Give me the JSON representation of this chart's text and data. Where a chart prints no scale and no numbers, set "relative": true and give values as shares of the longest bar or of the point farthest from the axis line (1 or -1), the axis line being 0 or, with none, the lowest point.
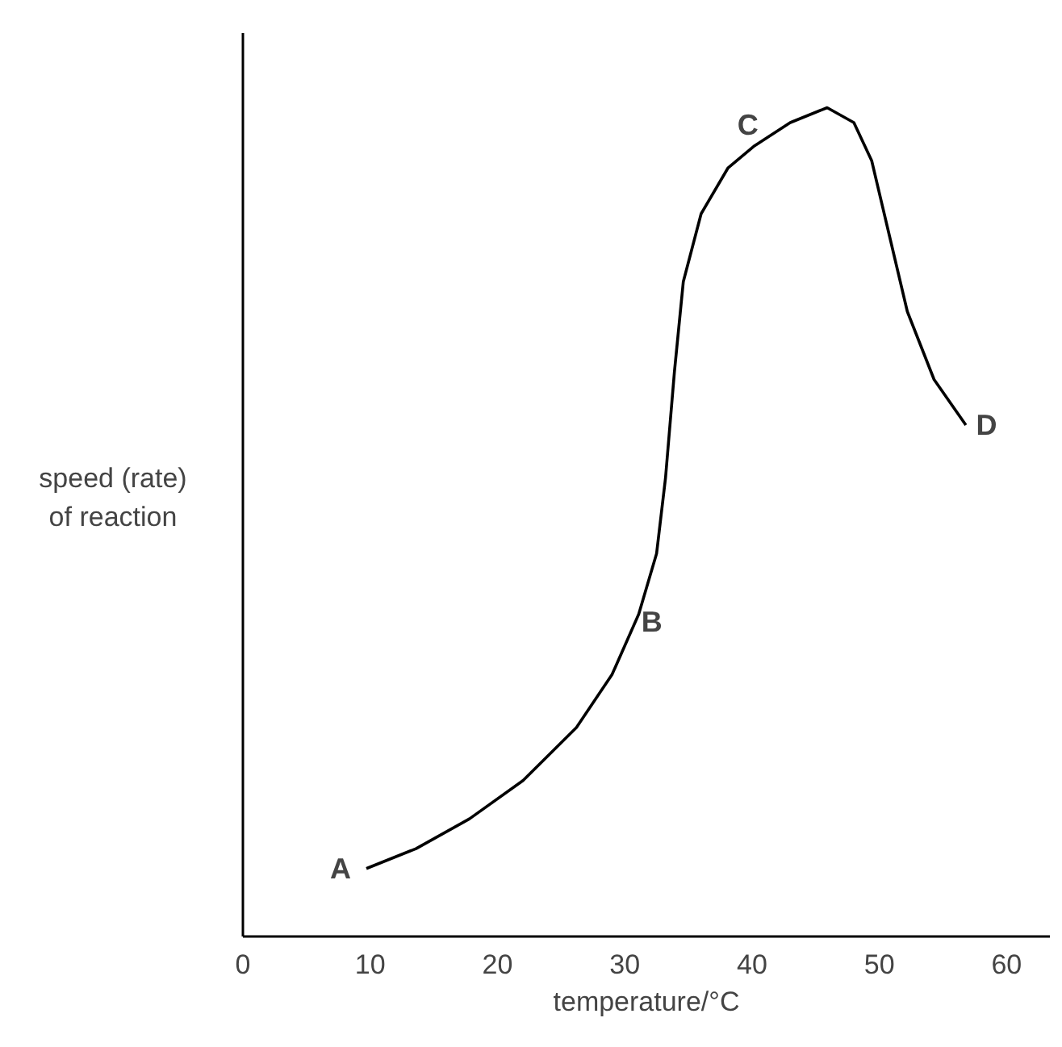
{
  "chart_data": {
    "type": "line",
    "relative": true,
    "xlabel": "temperature/°C",
    "ylabel": "speed (rate)\nof reaction",
    "xlim": [
      0,
      63.4
    ],
    "xticks": [
      0,
      10,
      20,
      30,
      40,
      50,
      60
    ],
    "grid": false,
    "line_style": "solid",
    "x": [
      9.7,
      13.6,
      17.8,
      22.0,
      26.2,
      29.0,
      31.1,
      32.5,
      33.2,
      33.9,
      34.6,
      36.0,
      38.1,
      40.2,
      43.0,
      45.9,
      48.0,
      49.4,
      50.8,
      52.2,
      54.3,
      56.8
    ],
    "series": [
      {
        "color": "#000000",
        "values": [
          0.082,
          0.106,
          0.142,
          0.188,
          0.252,
          0.316,
          0.389,
          0.462,
          0.553,
          0.681,
          0.79,
          0.872,
          0.927,
          0.954,
          0.982,
          1,
          0.982,
          0.936,
          0.845,
          0.754,
          0.672,
          0.617
        ]
      }
    ],
    "annotations": [
      {
        "text": "A",
        "x": 9.7,
        "y": 0.082
      },
      {
        "text": "B",
        "x": 30.5,
        "y": 0.36
      },
      {
        "text": "C",
        "x": 41,
        "y": 0.96
      },
      {
        "text": "D",
        "x": 56.8,
        "y": 0.617
      }
    ]
  }
}
